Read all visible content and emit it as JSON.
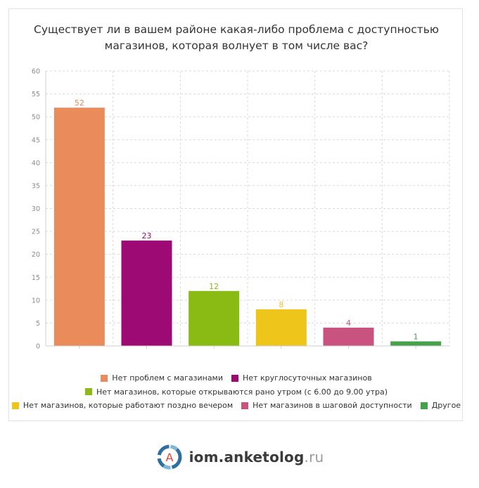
{
  "chart_data": {
    "type": "bar",
    "title_lines": [
      "Существует ли в вашем районе какая-либо проблема с доступностью",
      "магазинов, которая волнует в том числе вас?"
    ],
    "categories": [
      "Нет проблем с магазинами",
      "Нет круглосуточных магазинов",
      "Нет магазинов, которые открываются рано утром (с 6.00 до 9.00 утра)",
      "Нет магазинов, которые работают поздно вечером",
      "Нет магазинов в шаговой доступности",
      "Другое"
    ],
    "values": [
      52,
      23,
      12,
      8,
      4,
      1
    ],
    "colors": [
      "#EA8B5C",
      "#9E0A73",
      "#8ABB14",
      "#EEC51A",
      "#C9537E",
      "#44A24A"
    ],
    "ylim": [
      0,
      60
    ],
    "yticks": [
      0,
      5,
      10,
      15,
      20,
      25,
      30,
      35,
      40,
      45,
      50,
      55,
      60
    ],
    "grid": true,
    "legend_position": "bottom",
    "legend_rows": [
      [
        0,
        1
      ],
      [
        2
      ],
      [
        3,
        4,
        5
      ]
    ]
  },
  "branding": {
    "logo_letter": "A",
    "site_name": "iom.anketolog",
    "site_tld": ".ru",
    "logo_icon": "anketolog-logo-icon"
  }
}
